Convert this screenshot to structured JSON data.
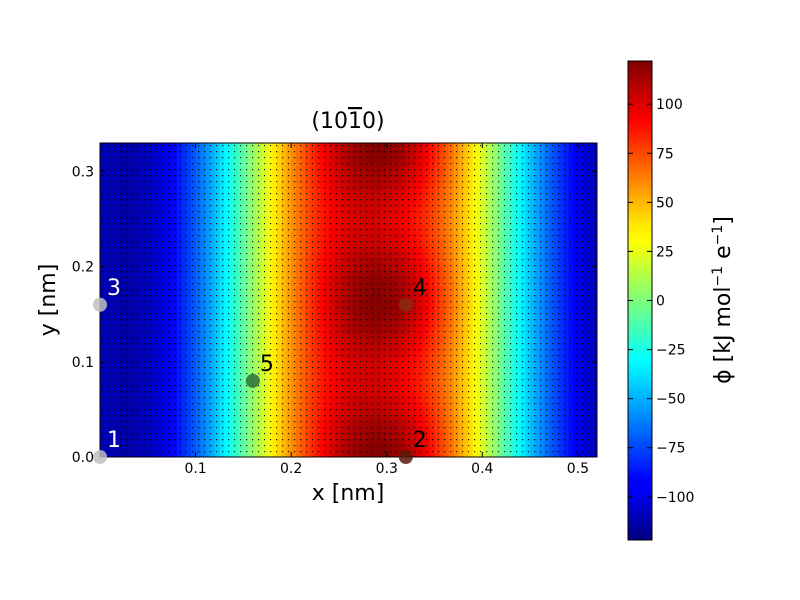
{
  "chart_data": {
    "type": "heatmap",
    "title_parts": [
      "(10",
      "1",
      "0)"
    ],
    "xlabel": "x [nm]",
    "ylabel": "y [nm]",
    "xlim": [
      0.0,
      0.52
    ],
    "ylim": [
      0.0,
      0.33
    ],
    "xticks": [
      0.1,
      0.2,
      0.3,
      0.4,
      0.5
    ],
    "xtick_labels": [
      "0.1",
      "0.2",
      "0.3",
      "0.4",
      "0.5"
    ],
    "yticks": [
      0.0,
      0.1,
      0.2,
      0.3
    ],
    "ytick_labels": [
      "0.0",
      "0.1",
      "0.2",
      "0.3"
    ],
    "colormap": "jet",
    "colorbar": {
      "label_parts": [
        "ϕ [kJ mol",
        "−1",
        " e",
        "−1",
        "]"
      ],
      "range": [
        -122,
        122
      ],
      "ticks": [
        -100,
        -75,
        -50,
        -25,
        0,
        25,
        50,
        75,
        100
      ],
      "tick_labels": [
        "−100",
        "−75",
        "−50",
        "−25",
        "0",
        "25",
        "50",
        "75",
        "100"
      ]
    },
    "grid_points_overlay": true,
    "points": [
      {
        "label": "1",
        "x": 0.0,
        "y": 0.0,
        "color": "#c0c0c0",
        "label_color": "#ffffff"
      },
      {
        "label": "2",
        "x": 0.32,
        "y": 0.0,
        "color": "#5a1a0a",
        "label_color": "#000000"
      },
      {
        "label": "3",
        "x": 0.0,
        "y": 0.16,
        "color": "#c0c0c0",
        "label_color": "#ffffff"
      },
      {
        "label": "4",
        "x": 0.32,
        "y": 0.16,
        "color": "#8b2a10",
        "label_color": "#000000"
      },
      {
        "label": "5",
        "x": 0.16,
        "y": 0.08,
        "color": "#2f6e3a",
        "label_color": "#000000"
      }
    ]
  }
}
